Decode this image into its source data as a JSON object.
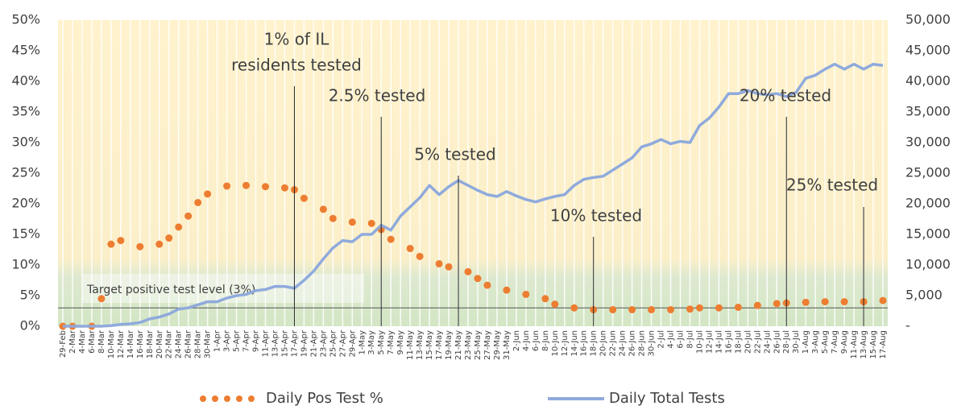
{
  "chart_data": {
    "type": "line",
    "categories": [
      "29-Feb",
      "2-Mar",
      "4-Mar",
      "6-Mar",
      "8-Mar",
      "10-Mar",
      "12-Mar",
      "14-Mar",
      "16-Mar",
      "18-Mar",
      "20-Mar",
      "22-Mar",
      "24-Mar",
      "26-Mar",
      "28-Mar",
      "30-Mar",
      "1-Apr",
      "3-Apr",
      "5-Apr",
      "7-Apr",
      "9-Apr",
      "11-Apr",
      "13-Apr",
      "15-Apr",
      "17-Apr",
      "19-Apr",
      "21-Apr",
      "23-Apr",
      "25-Apr",
      "27-Apr",
      "29-Apr",
      "1-May",
      "3-May",
      "5-May",
      "7-May",
      "9-May",
      "11-May",
      "13-May",
      "15-May",
      "17-May",
      "19-May",
      "21-May",
      "23-May",
      "25-May",
      "27-May",
      "29-May",
      "31-May",
      "2-Jun",
      "4-Jun",
      "6-Jun",
      "8-Jun",
      "10-Jun",
      "12-Jun",
      "14-Jun",
      "16-Jun",
      "18-Jun",
      "20-Jun",
      "22-Jun",
      "24-Jun",
      "26-Jun",
      "28-Jun",
      "30-Jun",
      "2-Jul",
      "4-Jul",
      "6-Jul",
      "8-Jul",
      "10-Jul",
      "12-Jul",
      "14-Jul",
      "16-Jul",
      "18-Jul",
      "20-Jul",
      "22-Jul",
      "24-Jul",
      "26-Jul",
      "28-Jul",
      "30-Jul",
      "1-Aug",
      "3-Aug",
      "5-Aug",
      "7-Aug",
      "9-Aug",
      "11-Aug",
      "13-Aug",
      "15-Aug",
      "17-Aug"
    ],
    "series": [
      {
        "name": "Daily Pos Test %",
        "color": "#ed7d31",
        "style": "dots",
        "values": [
          0,
          0,
          null,
          0,
          4.5,
          13.4,
          14,
          null,
          13,
          null,
          13.4,
          14.4,
          16.2,
          18,
          20.2,
          21.6,
          null,
          22.9,
          null,
          23,
          null,
          22.8,
          null,
          22.6,
          22.3,
          20.9,
          null,
          19.1,
          17.6,
          null,
          17,
          null,
          16.8,
          15.8,
          14.2,
          null,
          12.7,
          11.4,
          null,
          10.2,
          9.7,
          null,
          8.9,
          7.8,
          6.7,
          null,
          5.9,
          null,
          5.2,
          null,
          4.5,
          3.6,
          null,
          3.0,
          null,
          2.7,
          null,
          2.7,
          null,
          2.7,
          null,
          2.7,
          null,
          2.7,
          null,
          2.8,
          3.0,
          null,
          3.0,
          null,
          3.1,
          null,
          3.4,
          null,
          3.7,
          3.8,
          null,
          3.9,
          null,
          4.0,
          null,
          4.0,
          null,
          4.0,
          null,
          4.2
        ]
      },
      {
        "name": "Daily Total Tests",
        "color": "#8faadc",
        "style": "line",
        "axis": "y2",
        "values": [
          0,
          0,
          0,
          0,
          0,
          100,
          300,
          400,
          600,
          1200,
          1500,
          2000,
          2800,
          3000,
          3500,
          4000,
          4000,
          4600,
          5000,
          5200,
          5800,
          6000,
          6500,
          6500,
          6200,
          7500,
          9000,
          11000,
          12800,
          14000,
          13800,
          15000,
          15000,
          16500,
          15700,
          18000,
          19500,
          21000,
          23000,
          21500,
          22800,
          23800,
          23000,
          22200,
          21500,
          21200,
          22000,
          21300,
          20700,
          20300,
          20800,
          21200,
          21500,
          23000,
          24000,
          24300,
          24500,
          25500,
          26500,
          27500,
          29300,
          29800,
          30500,
          29800,
          30200,
          30000,
          32800,
          34000,
          35800,
          38000,
          38000,
          38500,
          38000,
          37800,
          38000,
          37500,
          38200,
          40500,
          41000,
          42000,
          42800,
          42000,
          42800,
          42000,
          42800,
          42600
        ]
      }
    ],
    "ylim": [
      0,
      50
    ],
    "yticks": [
      {
        "value": 0,
        "label": "0%"
      },
      {
        "value": 5,
        "label": "5%"
      },
      {
        "value": 10,
        "label": "10%"
      },
      {
        "value": 15,
        "label": "15%"
      },
      {
        "value": 20,
        "label": "20%"
      },
      {
        "value": 25,
        "label": "25%"
      },
      {
        "value": 30,
        "label": "30%"
      },
      {
        "value": 35,
        "label": "35%"
      },
      {
        "value": 40,
        "label": "40%"
      },
      {
        "value": 45,
        "label": "45%"
      },
      {
        "value": 50,
        "label": "50%"
      }
    ],
    "y2lim": [
      0,
      50000
    ],
    "y2ticks": [
      {
        "value": 0,
        "label": "-"
      },
      {
        "value": 5000,
        "label": "5,000"
      },
      {
        "value": 10000,
        "label": "10,000"
      },
      {
        "value": 15000,
        "label": "15,000"
      },
      {
        "value": 20000,
        "label": "20,000"
      },
      {
        "value": 25000,
        "label": "25,000"
      },
      {
        "value": 30000,
        "label": "30,000"
      },
      {
        "value": 35000,
        "label": "35,000"
      },
      {
        "value": 40000,
        "label": "40,000"
      },
      {
        "value": 45000,
        "label": "45,000"
      },
      {
        "value": 50000,
        "label": "50,000"
      }
    ],
    "target": {
      "label": "Target positive test level (3%)",
      "value": 3
    },
    "annotations": [
      {
        "date": "17-Apr",
        "text": [
          "1% of IL",
          "residents tested"
        ]
      },
      {
        "date": "5-May",
        "text": [
          "2.5% tested"
        ]
      },
      {
        "date": "21-May",
        "text": [
          "5% tested"
        ]
      },
      {
        "date": "18-Jun",
        "text": [
          "10% tested"
        ]
      },
      {
        "date": "28-Jul",
        "text": [
          "20% tested"
        ]
      },
      {
        "date": "13-Aug",
        "text": [
          "25% tested"
        ]
      }
    ],
    "legend": "bottom"
  }
}
